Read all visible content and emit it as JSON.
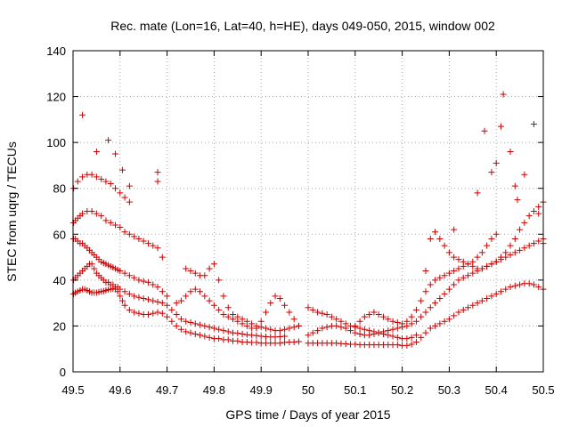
{
  "chart_data": {
    "type": "scatter",
    "title": "Rec. mate (Lon=16, Lat=40, h=HE), days 049-050, 2015, window 002",
    "xlabel": "GPS time / Days of year 2015",
    "ylabel": "STEC from uqrg / TECUs",
    "xlim": [
      49.5,
      50.5
    ],
    "ylim": [
      0,
      140
    ],
    "xticks": [
      "49.5",
      "49.6",
      "49.7",
      "49.8",
      "49.9",
      "50",
      "50.1",
      "50.2",
      "50.3",
      "50.4",
      "50.5"
    ],
    "yticks": [
      "0",
      "20",
      "40",
      "60",
      "80",
      "100",
      "120",
      "140"
    ],
    "grid": true,
    "marker": "+",
    "color": "#cc0000",
    "series": [
      {
        "x": [
          49.501,
          49.505,
          49.51,
          49.515,
          49.52,
          49.525,
          49.53,
          49.535,
          49.54,
          49.545,
          49.55,
          49.555,
          49.56,
          49.565,
          49.57,
          49.575,
          49.58,
          49.585,
          49.59,
          49.595,
          49.6,
          49.605,
          49.61,
          49.62,
          49.63,
          49.64,
          49.65,
          49.66,
          49.67,
          49.68,
          49.69,
          49.7,
          49.71,
          49.72,
          49.73,
          49.74,
          49.75,
          49.76,
          49.77,
          49.78,
          49.79,
          49.8,
          49.81,
          49.82,
          49.83,
          49.84,
          49.85,
          49.86,
          49.87,
          49.88,
          49.89,
          49.9,
          49.91,
          49.92,
          49.93,
          49.94,
          49.95,
          49.96,
          49.97,
          49.98
        ],
        "y": [
          34.0,
          34.5,
          35.0,
          35.5,
          36.0,
          36.0,
          35.5,
          35.0,
          34.5,
          34.5,
          34.5,
          34.8,
          35.0,
          35.2,
          35.5,
          35.8,
          36.0,
          36.2,
          36.0,
          35.0,
          33.0,
          31.0,
          29.0,
          27.0,
          26.0,
          25.5,
          25.0,
          25.0,
          25.5,
          26.0,
          25.5,
          24.0,
          22.0,
          20.0,
          18.5,
          17.5,
          17.0,
          16.5,
          16.0,
          15.5,
          15.0,
          14.5,
          14.5,
          14.0,
          14.0,
          13.5,
          13.5,
          13.0,
          13.0,
          12.8,
          12.8,
          12.5,
          12.5,
          12.5,
          12.5,
          12.5,
          12.8,
          13.0,
          13.0,
          13.2
        ]
      },
      {
        "x": [
          49.501,
          49.505,
          49.51,
          49.515,
          49.52,
          49.525,
          49.53,
          49.535,
          49.54,
          49.545,
          49.55,
          49.555,
          49.56,
          49.565,
          49.57,
          49.575,
          49.58,
          49.585,
          49.59,
          49.595,
          49.6,
          49.61,
          49.62,
          49.63,
          49.64,
          49.65,
          49.66,
          49.67,
          49.68,
          49.69,
          49.7,
          49.71,
          49.72,
          49.73,
          49.74,
          49.75,
          49.76,
          49.77,
          49.78,
          49.79,
          49.8,
          49.81,
          49.82,
          49.83,
          49.84,
          49.85,
          49.86,
          49.87,
          49.88,
          49.89,
          49.9,
          49.91,
          49.92,
          49.93,
          49.94,
          49.95
        ],
        "y": [
          40.0,
          41.0,
          42.0,
          43.0,
          44.0,
          45.0,
          46.0,
          47.0,
          47.0,
          45.0,
          43.0,
          42.0,
          41.0,
          40.0,
          39.0,
          39.0,
          38.0,
          38.0,
          37.0,
          37.0,
          36.0,
          35.0,
          34.0,
          33.0,
          32.5,
          32.0,
          31.5,
          31.0,
          30.5,
          30.0,
          29.0,
          27.0,
          25.0,
          23.0,
          22.0,
          21.5,
          21.0,
          20.5,
          20.0,
          19.5,
          19.0,
          18.5,
          18.0,
          17.5,
          17.0,
          16.8,
          16.5,
          16.2,
          16.0,
          15.8,
          15.5,
          15.3,
          15.2,
          15.2,
          15.3,
          15.5
        ]
      },
      {
        "x": [
          49.501,
          49.505,
          49.51,
          49.515,
          49.52,
          49.525,
          49.53,
          49.535,
          49.54,
          49.545,
          49.55,
          49.555,
          49.56,
          49.565,
          49.57,
          49.575,
          49.58,
          49.585,
          49.59,
          49.595,
          49.6,
          49.61,
          49.62,
          49.63,
          49.64,
          49.65,
          49.66,
          49.67,
          49.68,
          49.69,
          49.7
        ],
        "y": [
          58.0,
          58.0,
          57.0,
          56.0,
          56.0,
          55.0,
          54.0,
          53.0,
          52.0,
          51.0,
          50.0,
          49.0,
          48.0,
          47.5,
          47.0,
          46.5,
          46.0,
          45.5,
          45.0,
          44.5,
          44.0,
          43.0,
          42.0,
          41.0,
          40.0,
          39.5,
          39.0,
          38.0,
          37.0,
          35.0,
          33.0
        ]
      },
      {
        "x": [
          49.501,
          49.505,
          49.51,
          49.515,
          49.52,
          49.53,
          49.54,
          49.55,
          49.56,
          49.57,
          49.58,
          49.59,
          49.6,
          49.61,
          49.62,
          49.63,
          49.64,
          49.65,
          49.66,
          49.67,
          49.68,
          49.69
        ],
        "y": [
          65.0,
          66.0,
          67.0,
          68.0,
          69.0,
          70.0,
          70.0,
          69.0,
          68.0,
          66.0,
          65.0,
          64.0,
          63.0,
          61.0,
          60.0,
          59.0,
          58.0,
          57.0,
          56.0,
          55.0,
          54.0,
          50.0
        ]
      },
      {
        "x": [
          49.501,
          49.51,
          49.52,
          49.53,
          49.54,
          49.55,
          49.56,
          49.57,
          49.58,
          49.59,
          49.6,
          49.61,
          49.62
        ],
        "y": [
          80.0,
          83.0,
          85.0,
          86.0,
          86.0,
          85.0,
          84.0,
          83.0,
          82.0,
          80.0,
          78.0,
          76.0,
          74.0
        ]
      },
      {
        "x": [
          49.52,
          49.55,
          49.575,
          49.59,
          49.605,
          49.62,
          49.68,
          49.68
        ],
        "y": [
          112.0,
          96.0,
          101.0,
          95.0,
          88.0,
          81.0,
          87.0,
          83.0
        ]
      },
      {
        "x": [
          49.72,
          49.73,
          49.74,
          49.75,
          49.76,
          49.77,
          49.78,
          49.79,
          49.8,
          49.81,
          49.82,
          49.83,
          49.84,
          49.85,
          49.86,
          49.87,
          49.88,
          49.89,
          49.9,
          49.91,
          49.92,
          49.93,
          49.94,
          49.95,
          49.96,
          49.97,
          49.98
        ],
        "y": [
          30.0,
          31.0,
          33.0,
          35.0,
          36.0,
          35.0,
          33.0,
          31.0,
          29.0,
          27.0,
          25.0,
          24.0,
          23.0,
          22.0,
          21.0,
          20.0,
          19.0,
          19.0,
          22.0,
          26.0,
          30.0,
          33.0,
          32.0,
          29.0,
          26.0,
          23.0,
          20.0
        ]
      },
      {
        "x": [
          49.74,
          49.75,
          49.76,
          49.77,
          49.78,
          49.79,
          49.8,
          49.81,
          49.82,
          49.83,
          49.84,
          49.85,
          49.86,
          49.87,
          49.88,
          49.89,
          49.9,
          49.91,
          49.92,
          49.93,
          49.94,
          49.95,
          49.96,
          49.97,
          49.98
        ],
        "y": [
          45.0,
          44.0,
          43.0,
          42.0,
          42.0,
          45.0,
          47.0,
          40.0,
          33.0,
          28.0,
          25.0,
          24.0,
          23.0,
          22.0,
          21.0,
          20.0,
          19.5,
          19.0,
          18.5,
          18.0,
          18.0,
          18.5,
          19.0,
          19.5,
          20.0
        ]
      },
      {
        "x": [
          50.0,
          50.01,
          50.02,
          50.03,
          50.04,
          50.05,
          50.06,
          50.07,
          50.08,
          50.09,
          50.1,
          50.11,
          50.12,
          50.13,
          50.14,
          50.15,
          50.16,
          50.17,
          50.18,
          50.19,
          50.2,
          50.21,
          50.22,
          50.23,
          50.24,
          50.25,
          50.26,
          50.27,
          50.28,
          50.29,
          50.3,
          50.31,
          50.32,
          50.33,
          50.34,
          50.35,
          50.36,
          50.37,
          50.38,
          50.39,
          50.4,
          50.41,
          50.42,
          50.43,
          50.44,
          50.45,
          50.46,
          50.47,
          50.48,
          50.49,
          50.5
        ],
        "y": [
          12.5,
          12.5,
          12.5,
          12.5,
          12.5,
          12.5,
          12.5,
          12.3,
          12.2,
          12.0,
          12.0,
          11.8,
          11.8,
          11.8,
          11.8,
          11.8,
          11.8,
          11.8,
          11.8,
          11.8,
          11.5,
          11.5,
          12.0,
          13.0,
          15.0,
          17.0,
          19.0,
          20.0,
          21.0,
          22.0,
          23.0,
          24.5,
          26.0,
          27.0,
          28.0,
          29.0,
          30.0,
          31.0,
          32.0,
          33.0,
          34.0,
          35.0,
          36.0,
          37.0,
          37.5,
          38.0,
          38.5,
          38.5,
          38.0,
          37.0,
          36.0
        ]
      },
      {
        "x": [
          50.0,
          50.01,
          50.02,
          50.03,
          50.04,
          50.05,
          50.06,
          50.07,
          50.08,
          50.09,
          50.1,
          50.11,
          50.12,
          50.13,
          50.14,
          50.15,
          50.16,
          50.17,
          50.18,
          50.19,
          50.2,
          50.21,
          50.22,
          50.23,
          50.24,
          50.25,
          50.26,
          50.27,
          50.28,
          50.29,
          50.3,
          50.31,
          50.32,
          50.33,
          50.34,
          50.35,
          50.36,
          50.37,
          50.38,
          50.39,
          50.4,
          50.41,
          50.42,
          50.43,
          50.44,
          50.45,
          50.46,
          50.47,
          50.48,
          50.49,
          50.5
        ],
        "y": [
          16.0,
          17.0,
          18.0,
          19.0,
          19.5,
          20.0,
          20.0,
          19.5,
          19.0,
          18.0,
          17.0,
          16.5,
          16.0,
          16.0,
          16.5,
          17.0,
          17.5,
          18.0,
          18.5,
          19.0,
          19.5,
          20.0,
          21.0,
          22.0,
          24.0,
          26.0,
          28.0,
          30.0,
          32.0,
          34.0,
          36.0,
          38.0,
          40.0,
          41.0,
          42.0,
          43.0,
          44.0,
          45.0,
          46.0,
          47.0,
          48.0,
          49.0,
          50.0,
          51.0,
          52.0,
          53.0,
          54.0,
          55.0,
          56.0,
          57.0,
          58.0
        ]
      },
      {
        "x": [
          50.0,
          50.01,
          50.02,
          50.03,
          50.04,
          50.05,
          50.06,
          50.07,
          50.08,
          50.09,
          50.1,
          50.11,
          50.12,
          50.13,
          50.14,
          50.15,
          50.16,
          50.17,
          50.18,
          50.19,
          50.2,
          50.21,
          50.22,
          50.23
        ],
        "y": [
          28.0,
          27.0,
          26.0,
          25.5,
          25.0,
          24.0,
          23.0,
          22.0,
          21.0,
          20.0,
          19.5,
          19.0,
          18.5,
          18.0,
          17.5,
          17.0,
          16.5,
          16.0,
          15.5,
          15.0,
          14.5,
          14.5,
          15.0,
          16.0
        ]
      },
      {
        "x": [
          50.1,
          50.11,
          50.12,
          50.13,
          50.14,
          50.15,
          50.16,
          50.17,
          50.18,
          50.19,
          50.2,
          50.21,
          50.22,
          50.23,
          50.24,
          50.25,
          50.26,
          50.27,
          50.28,
          50.29,
          50.3,
          50.31,
          50.32,
          50.33,
          50.34,
          50.35,
          50.36,
          50.37,
          50.38,
          50.39,
          50.4
        ],
        "y": [
          20.0,
          22.0,
          24.0,
          25.0,
          26.0,
          25.0,
          24.0,
          23.0,
          22.0,
          21.5,
          21.0,
          22.0,
          24.0,
          27.0,
          31.0,
          35.0,
          38.0,
          40.0,
          41.0,
          42.0,
          43.0,
          44.0,
          45.0,
          46.0,
          47.0,
          48.0,
          50.0,
          52.0,
          55.0,
          58.0,
          60.0
        ]
      },
      {
        "x": [
          50.25,
          50.26,
          50.27,
          50.28,
          50.29,
          50.3,
          50.31,
          50.32,
          50.33,
          50.34,
          50.35,
          50.36,
          50.37,
          50.38,
          50.39,
          50.4,
          50.41,
          50.42,
          50.43,
          50.44,
          50.45,
          50.46,
          50.47,
          50.48,
          50.49,
          50.5
        ],
        "y": [
          44.0,
          58.0,
          61.0,
          58.0,
          55.0,
          52.0,
          50.0,
          49.0,
          48.0,
          47.0,
          46.0,
          45.0,
          45.0,
          46.0,
          47.0,
          48.0,
          50.0,
          52.0,
          55.0,
          58.0,
          62.0,
          65.0,
          68.0,
          70.0,
          72.0,
          74.0
        ]
      },
      {
        "x": [
          50.31,
          50.36,
          50.375,
          50.39,
          50.4,
          50.41,
          50.415,
          50.43,
          50.44,
          50.445,
          50.46,
          50.48,
          50.49,
          50.5
        ],
        "y": [
          62.0,
          78.0,
          105.0,
          87.0,
          91.0,
          107.0,
          121.0,
          96.0,
          81.0,
          75.0,
          86.0,
          108.0,
          69.0,
          56.0
        ]
      }
    ]
  }
}
